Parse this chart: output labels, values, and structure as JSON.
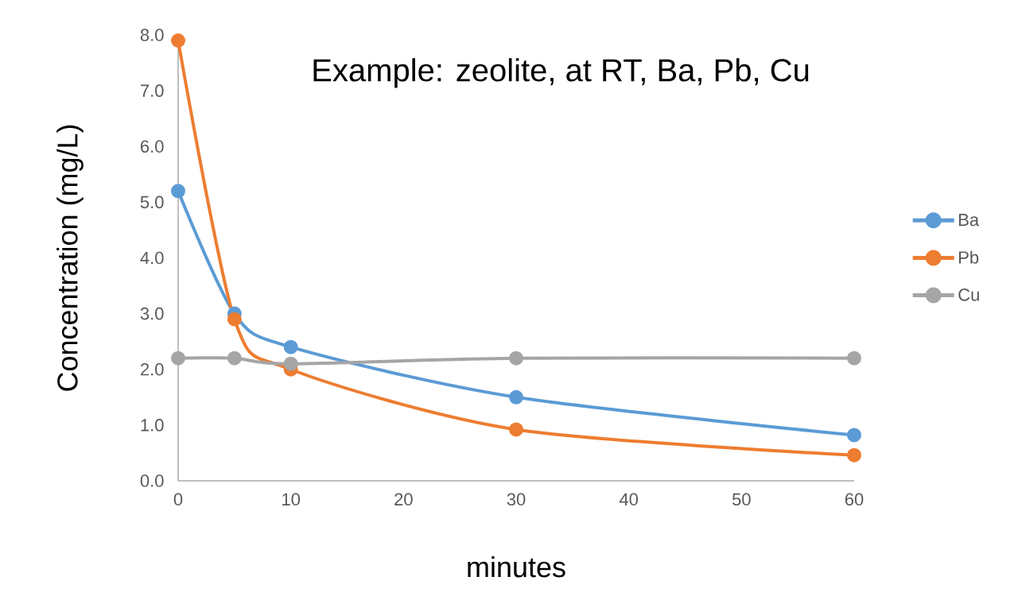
{
  "chart_data": {
    "type": "line",
    "title": "Example: zeolite, at RT, Ba, Pb, Cu",
    "xlabel": "minutes",
    "ylabel": "Concentration (mg/L)",
    "x": [
      0,
      5,
      10,
      30,
      60
    ],
    "series": [
      {
        "name": "Ba",
        "color": "#5b9bd5",
        "values": [
          5.2,
          3.0,
          2.4,
          1.5,
          0.82
        ]
      },
      {
        "name": "Pb",
        "color": "#ed7d31",
        "values": [
          7.9,
          2.9,
          2.0,
          0.92,
          0.46
        ]
      },
      {
        "name": "Cu",
        "color": "#a5a5a5",
        "values": [
          2.2,
          2.2,
          2.1,
          2.2,
          2.2
        ]
      }
    ],
    "xlim": [
      0,
      60
    ],
    "ylim": [
      0,
      8
    ],
    "xticks": [
      0,
      10,
      20,
      30,
      40,
      50,
      60
    ],
    "yticks": [
      {
        "value": 0,
        "label": "0.0"
      },
      {
        "value": 1,
        "label": "1.0"
      },
      {
        "value": 2,
        "label": "2.0"
      },
      {
        "value": 3,
        "label": "3.0"
      },
      {
        "value": 4,
        "label": "4.0"
      },
      {
        "value": 5,
        "label": "5.0"
      },
      {
        "value": 6,
        "label": "6.0"
      },
      {
        "value": 7,
        "label": "7.0"
      },
      {
        "value": 8,
        "label": "8.0"
      }
    ],
    "legend": "right",
    "marker": "circle"
  }
}
